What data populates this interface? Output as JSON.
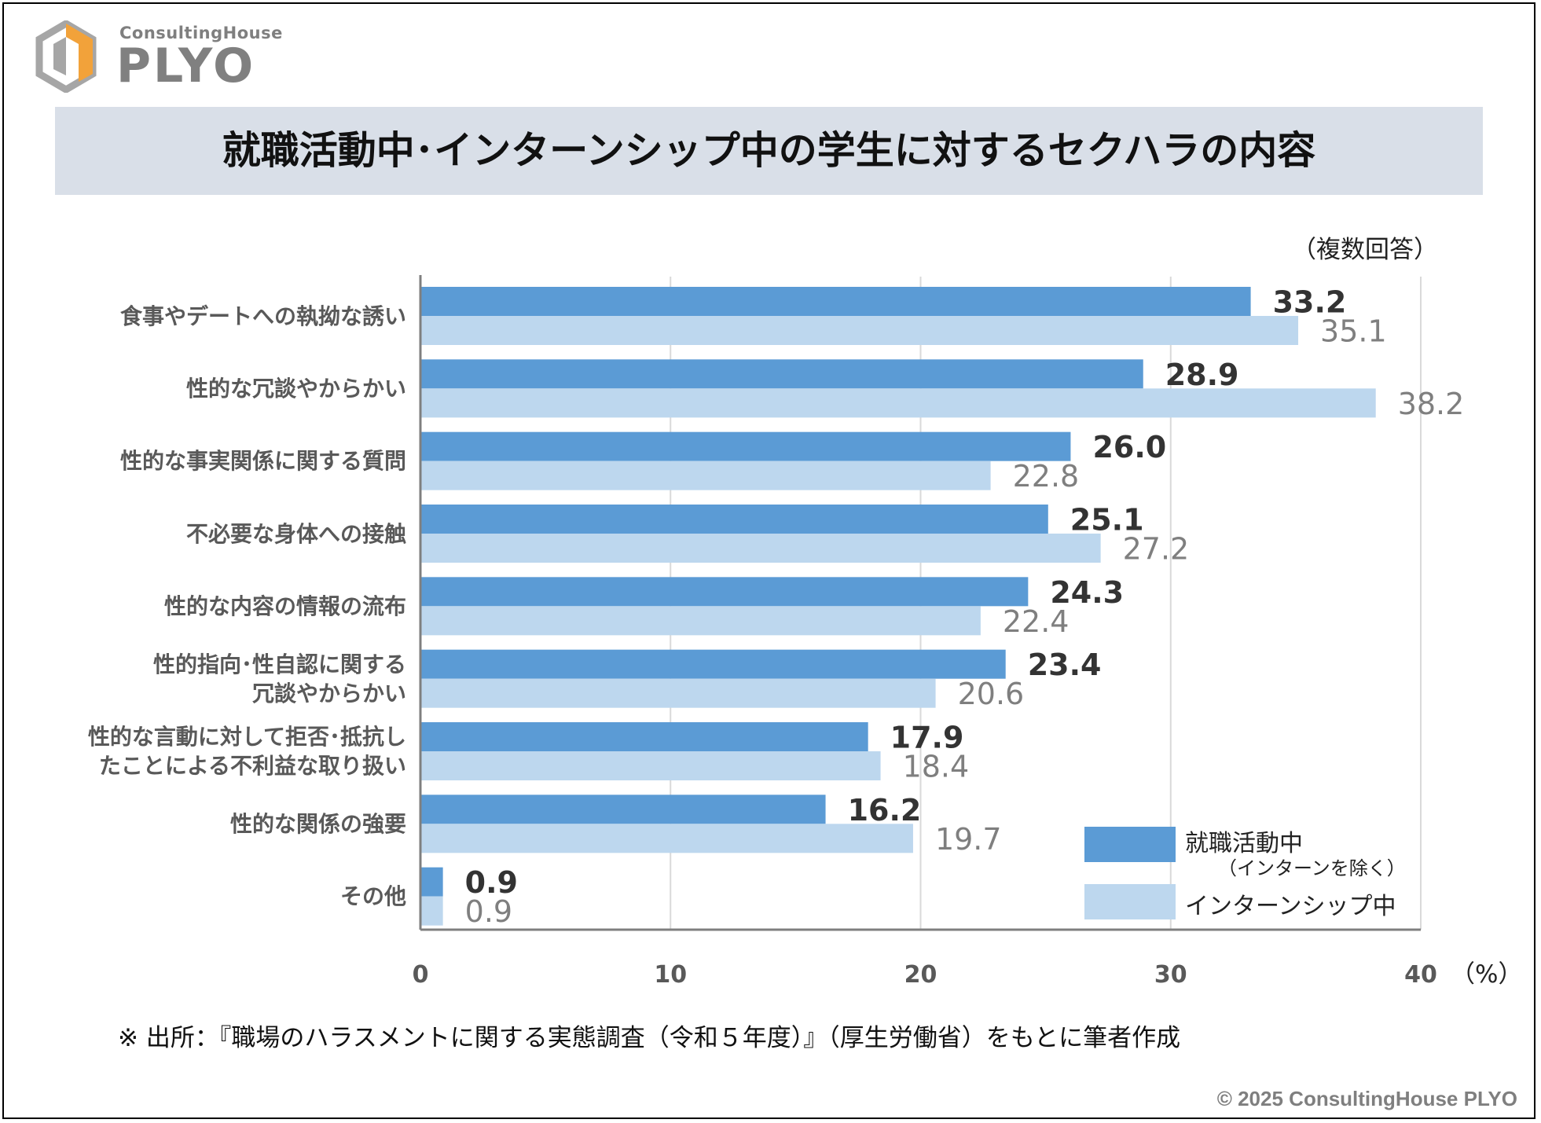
{
  "logo": {
    "brand_sub": "ConsultingHouse",
    "brand_main": "PLYO",
    "icon": "hexagon-logo-icon"
  },
  "title": "就職活動中･インターンシップ中の学生に対するセクハラの内容",
  "note_multi": "（複数回答）",
  "chart_data": {
    "type": "bar",
    "orientation": "horizontal",
    "categories": [
      [
        "食事やデートへの執拗な誘い"
      ],
      [
        "性的な冗談やからかい"
      ],
      [
        "性的な事実関係に関する質問"
      ],
      [
        "不必要な身体への接触"
      ],
      [
        "性的な内容の情報の流布"
      ],
      [
        "性的指向･性自認に関する",
        "冗談やからかい"
      ],
      [
        "性的な言動に対して拒否･抵抗し",
        "たことによる不利益な取り扱い"
      ],
      [
        "性的な関係の強要"
      ],
      [
        "その他"
      ]
    ],
    "series": [
      {
        "name": "就職活動中",
        "name_sub": "（インターンを除く）",
        "values": [
          33.2,
          28.9,
          26.0,
          25.1,
          24.3,
          23.4,
          17.9,
          16.2,
          0.9
        ],
        "labels": [
          "33.2",
          "28.9",
          "26.0",
          "25.1",
          "24.3",
          "23.4",
          "17.9",
          "16.2",
          "0.9"
        ],
        "color": "#5b9bd5",
        "label_color": "#333333"
      },
      {
        "name": "インターンシップ中",
        "values": [
          35.1,
          38.2,
          22.8,
          27.2,
          22.4,
          20.6,
          18.4,
          19.7,
          0.9
        ],
        "labels": [
          "35.1",
          "38.2",
          "22.8",
          "27.2",
          "22.4",
          "20.6",
          "18.4",
          "19.7",
          "0.9"
        ],
        "color": "#bdd7ee",
        "label_color": "#7f7f7f"
      }
    ],
    "x_ticks": [
      "0",
      "10",
      "20",
      "30",
      "40"
    ],
    "x_unit": "（%）",
    "xlim": [
      0,
      40
    ],
    "grid": true,
    "legend_position": "bottom-right"
  },
  "source_note": "※ 出所：『職場のハラスメントに関する実態調査（令和５年度）』（厚生労働省）をもとに筆者作成",
  "copyright": "© 2025 ConsultingHouse PLYO"
}
